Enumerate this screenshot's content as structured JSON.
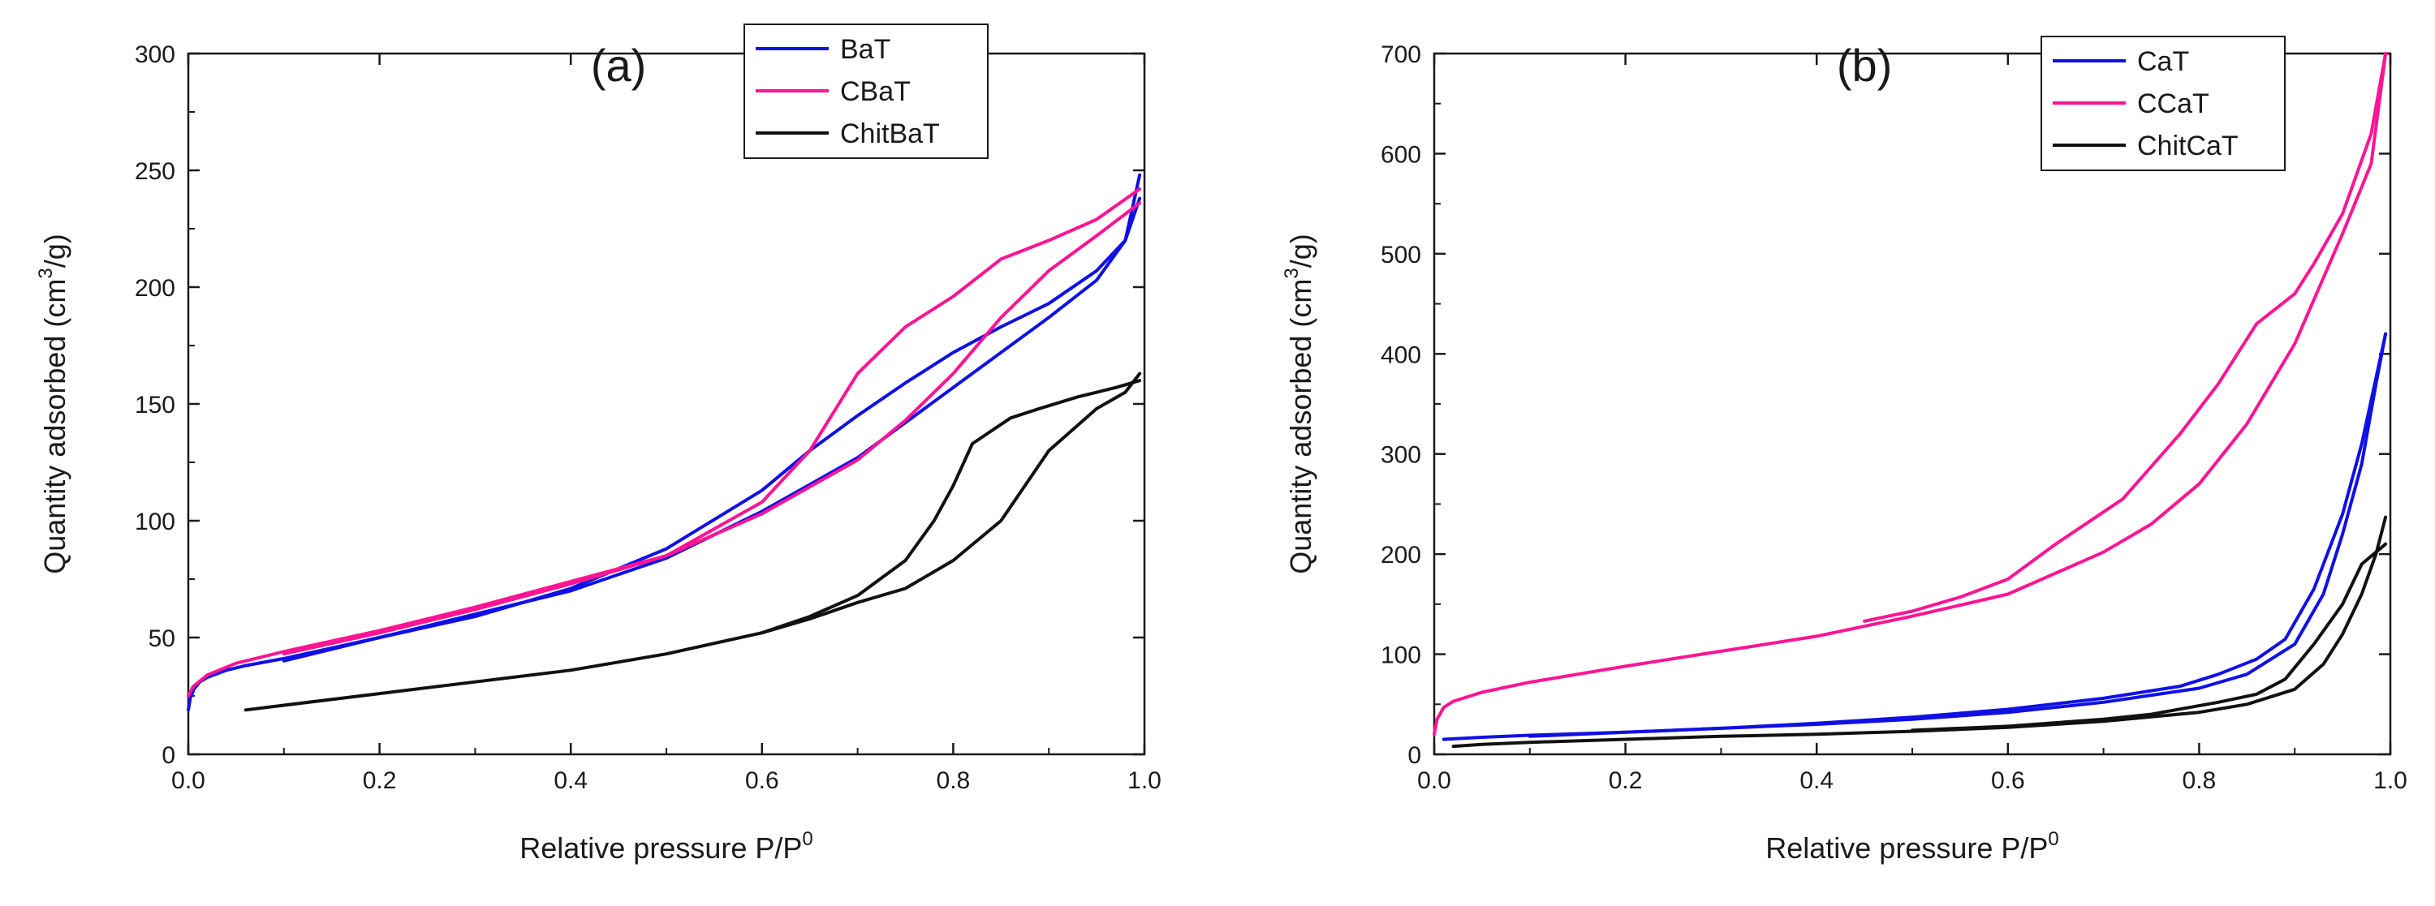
{
  "chart_data": [
    {
      "type": "line",
      "panel_label": "(a)",
      "xlabel": "Relative pressure P/P",
      "xlabel_sup": "0",
      "ylabel": "Quantity adsorbed (cm",
      "ylabel_sup": "3",
      "ylabel_tail": "/g)",
      "xlim": [
        0,
        1.0
      ],
      "ylim": [
        0,
        300
      ],
      "xticks": [
        "0.0",
        "0.2",
        "0.4",
        "0.6",
        "0.8",
        "1.0"
      ],
      "yticks": [
        "0",
        "50",
        "100",
        "150",
        "200",
        "250",
        "300"
      ],
      "legend_position": "top-right",
      "series": [
        {
          "name": "BaT",
          "color": "#1010e6",
          "adsorption": {
            "x": [
              0.0,
              0.002,
              0.006,
              0.012,
              0.02,
              0.04,
              0.06,
              0.1,
              0.2,
              0.3,
              0.4,
              0.5,
              0.6,
              0.7,
              0.8,
              0.9,
              0.95,
              0.98,
              0.995
            ],
            "y": [
              19,
              24,
              28,
              31,
              33,
              36,
              38,
              41,
              50,
              60,
              70,
              84,
              104,
              127,
              157,
              187,
              203,
              220,
              248
            ]
          },
          "desorption": {
            "x": [
              0.995,
              0.98,
              0.95,
              0.9,
              0.85,
              0.8,
              0.75,
              0.7,
              0.65,
              0.6,
              0.5,
              0.4,
              0.3,
              0.2,
              0.1
            ],
            "y": [
              238,
              220,
              207,
              193,
              183,
              172,
              159,
              145,
              130,
              113,
              88,
              71,
              59,
              50,
              40
            ]
          }
        },
        {
          "name": "CBaT",
          "color": "#ff1493",
          "adsorption": {
            "x": [
              0.0,
              0.005,
              0.02,
              0.05,
              0.1,
              0.2,
              0.3,
              0.4,
              0.5,
              0.6,
              0.7,
              0.75,
              0.8,
              0.85,
              0.9,
              0.95,
              0.995
            ],
            "y": [
              25,
              29,
              34,
              39,
              44,
              53,
              63,
              74,
              85,
              103,
              126,
              143,
              163,
              187,
              207,
              222,
              236
            ]
          },
          "desorption": {
            "x": [
              0.995,
              0.95,
              0.9,
              0.85,
              0.8,
              0.75,
              0.7,
              0.65,
              0.6,
              0.5,
              0.4,
              0.3,
              0.2,
              0.1
            ],
            "y": [
              242,
              229,
              220,
              212,
              196,
              183,
              163,
              130,
              108,
              85,
              73,
              62,
              52,
              43
            ]
          }
        },
        {
          "name": "ChitBaT",
          "color": "#111111",
          "adsorption": {
            "x": [
              0.06,
              0.1,
              0.2,
              0.3,
              0.4,
              0.5,
              0.6,
              0.65,
              0.7,
              0.75,
              0.8,
              0.85,
              0.9,
              0.95,
              0.98,
              0.995
            ],
            "y": [
              19,
              21,
              26,
              31,
              36,
              43,
              52,
              58,
              65,
              71,
              83,
              100,
              130,
              148,
              155,
              163
            ]
          },
          "desorption": {
            "x": [
              0.995,
              0.97,
              0.93,
              0.89,
              0.86,
              0.82,
              0.8,
              0.78,
              0.75,
              0.7,
              0.65,
              0.6
            ],
            "y": [
              160,
              157,
              153,
              148,
              144,
              133,
              115,
              100,
              83,
              68,
              59,
              52
            ]
          }
        }
      ]
    },
    {
      "type": "line",
      "panel_label": "(b)",
      "xlabel": "Relative pressure P/P",
      "xlabel_sup": "0",
      "ylabel": "Quantity adsorbed (cm",
      "ylabel_sup": "3",
      "ylabel_tail": "/g)",
      "xlim": [
        0,
        1.0
      ],
      "ylim": [
        0,
        700
      ],
      "xticks": [
        "0.0",
        "0.2",
        "0.4",
        "0.6",
        "0.8",
        "1.0"
      ],
      "yticks": [
        "0",
        "100",
        "200",
        "300",
        "400",
        "500",
        "600",
        "700"
      ],
      "legend_position": "top-right",
      "series": [
        {
          "name": "CaT",
          "color": "#1010e6",
          "adsorption": {
            "x": [
              0.01,
              0.05,
              0.1,
              0.2,
              0.3,
              0.4,
              0.5,
              0.6,
              0.7,
              0.8,
              0.85,
              0.9,
              0.93,
              0.95,
              0.97,
              0.985,
              0.995
            ],
            "y": [
              15,
              17,
              19,
              22,
              26,
              30,
              35,
              42,
              52,
              66,
              80,
              110,
              160,
              220,
              290,
              370,
              420
            ]
          },
          "desorption": {
            "x": [
              0.995,
              0.97,
              0.95,
              0.92,
              0.89,
              0.86,
              0.82,
              0.78,
              0.7,
              0.6,
              0.5,
              0.4,
              0.3,
              0.2,
              0.1
            ],
            "y": [
              420,
              310,
              240,
              165,
              115,
              95,
              80,
              68,
              56,
              45,
              37,
              31,
              26,
              22,
              18
            ]
          }
        },
        {
          "name": "CCaT",
          "color": "#ff1493",
          "adsorption": {
            "x": [
              0.0,
              0.003,
              0.01,
              0.02,
              0.05,
              0.1,
              0.2,
              0.3,
              0.4,
              0.5,
              0.6,
              0.7,
              0.75,
              0.8,
              0.85,
              0.9,
              0.95,
              0.98,
              0.995
            ],
            "y": [
              20,
              35,
              47,
              53,
              62,
              72,
              88,
              103,
              118,
              138,
              160,
              202,
              230,
              270,
              330,
              410,
              520,
              590,
              700
            ]
          },
          "desorption": {
            "x": [
              0.995,
              0.98,
              0.95,
              0.92,
              0.9,
              0.86,
              0.82,
              0.78,
              0.72,
              0.65,
              0.6,
              0.55,
              0.5,
              0.45
            ],
            "y": [
              700,
              620,
              540,
              490,
              460,
              430,
              370,
              320,
              255,
              210,
              175,
              157,
              143,
              133
            ]
          }
        },
        {
          "name": "ChitCaT",
          "color": "#111111",
          "adsorption": {
            "x": [
              0.02,
              0.05,
              0.1,
              0.2,
              0.3,
              0.4,
              0.5,
              0.6,
              0.7,
              0.8,
              0.85,
              0.9,
              0.93,
              0.95,
              0.97,
              0.985,
              0.995
            ],
            "y": [
              8,
              10,
              12,
              15,
              18,
              20,
              23,
              27,
              33,
              42,
              50,
              65,
              90,
              120,
              160,
              200,
              237
            ]
          },
          "desorption": {
            "x": [
              0.995,
              0.97,
              0.95,
              0.92,
              0.89,
              0.86,
              0.82,
              0.75,
              0.7,
              0.6,
              0.5
            ],
            "y": [
              210,
              190,
              150,
              110,
              75,
              60,
              52,
              40,
              35,
              28,
              24
            ]
          }
        }
      ]
    }
  ]
}
